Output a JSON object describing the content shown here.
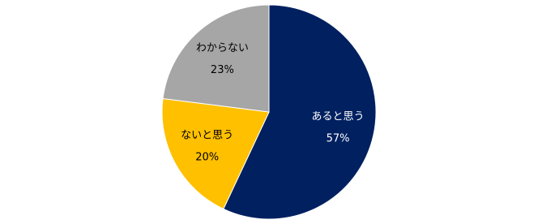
{
  "chart_data": {
    "type": "pie",
    "categories": [
      "あると思う",
      "ないと思う",
      "わからない"
    ],
    "values": [
      57,
      20,
      23
    ],
    "value_labels": [
      "57%",
      "20%",
      "23%"
    ],
    "colors": [
      "#002060",
      "#FFC000",
      "#A6A6A6"
    ]
  }
}
